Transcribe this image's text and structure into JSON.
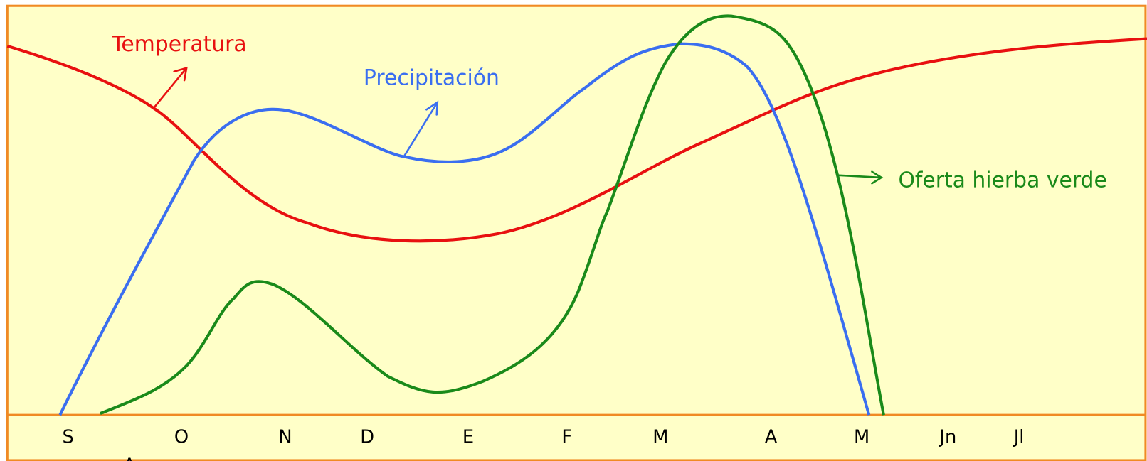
{
  "labels": {
    "temperature": "Temperatura",
    "precipitation": "Precipitación",
    "grass": "Oferta hierba verde"
  },
  "months": [
    "S",
    "O",
    "N",
    "D",
    "E",
    "F",
    "M",
    "A",
    "M",
    "Jn",
    "Jl"
  ],
  "extra_label": "A"
}
